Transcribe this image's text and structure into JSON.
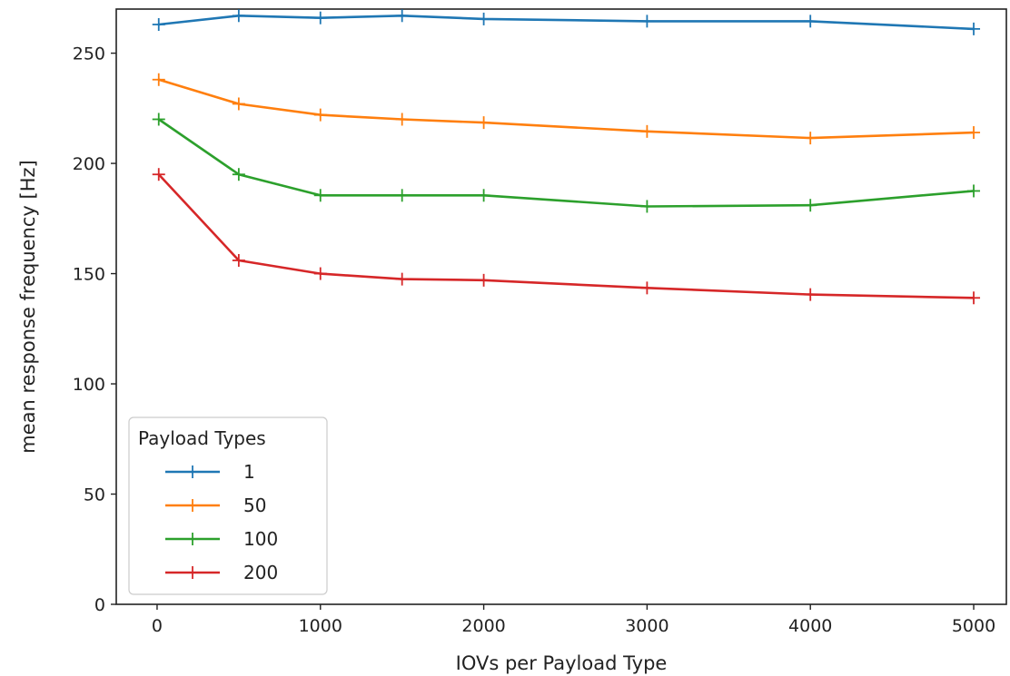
{
  "chart_data": {
    "type": "line",
    "xlabel": "IOVs per Payload Type",
    "ylabel": "mean response frequency [Hz]",
    "xlim": [
      -250,
      5200
    ],
    "ylim": [
      0,
      270
    ],
    "xticks": [
      0,
      1000,
      2000,
      3000,
      4000,
      5000
    ],
    "yticks": [
      0,
      50,
      100,
      150,
      200,
      250
    ],
    "x": [
      10,
      500,
      1000,
      1500,
      2000,
      3000,
      4000,
      5000
    ],
    "marker": "plus",
    "grid": false,
    "legend": {
      "title": "Payload Types",
      "placement": "lower-left"
    },
    "series": [
      {
        "name": "1",
        "color": "#1f77b4",
        "values": [
          263,
          267,
          266,
          267,
          265.5,
          264.5,
          264.5,
          261
        ]
      },
      {
        "name": "50",
        "color": "#ff7f0e",
        "values": [
          238,
          227,
          222,
          220,
          218.5,
          214.5,
          211.5,
          214
        ]
      },
      {
        "name": "100",
        "color": "#2ca02c",
        "values": [
          220,
          195,
          185.5,
          185.5,
          185.5,
          180.5,
          181,
          187.5
        ]
      },
      {
        "name": "200",
        "color": "#d62728",
        "values": [
          195,
          156,
          150,
          147.5,
          147,
          143.5,
          140.5,
          139
        ]
      }
    ]
  }
}
